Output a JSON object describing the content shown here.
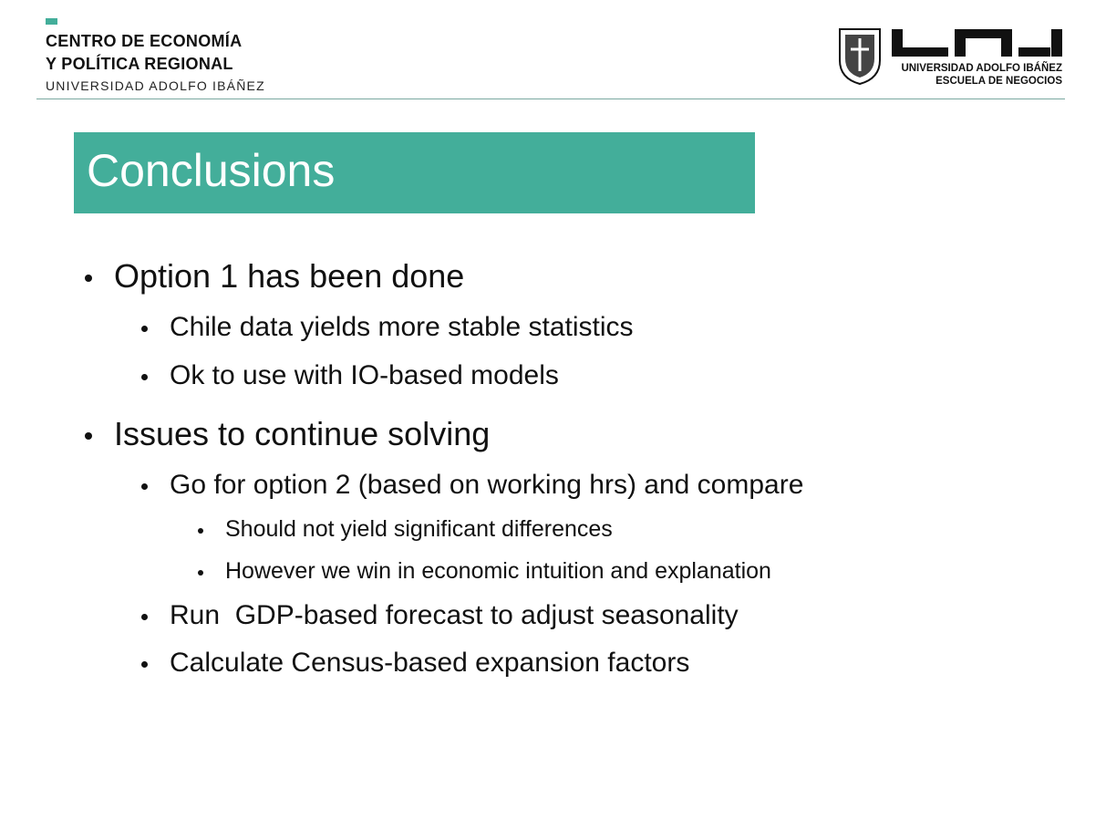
{
  "header": {
    "left": {
      "line1": "CENTRO DE ECONOMÍA",
      "line2": "Y POLÍTICA REGIONAL",
      "line3": "UNIVERSIDAD ADOLFO IBÁÑEZ"
    },
    "right": {
      "line1": "UNIVERSIDAD ADOLFO IBÁÑEZ",
      "line2": "ESCUELA DE NEGOCIOS"
    }
  },
  "title": "Conclusions",
  "bullets": [
    {
      "text": "Option 1 has been done",
      "children": [
        {
          "text": "Chile data yields more stable statistics"
        },
        {
          "text": "Ok to use with IO-based models"
        }
      ]
    },
    {
      "text": "Issues to continue solving",
      "children": [
        {
          "text": "Go for option 2 (based on working hrs) and compare",
          "children": [
            {
              "text": "Should not yield significant differences"
            },
            {
              "text": "However we win in economic intuition and explanation"
            }
          ]
        },
        {
          "text": "Run  GDP-based forecast to adjust seasonality"
        },
        {
          "text": "Calculate Census-based expansion factors"
        }
      ]
    }
  ]
}
